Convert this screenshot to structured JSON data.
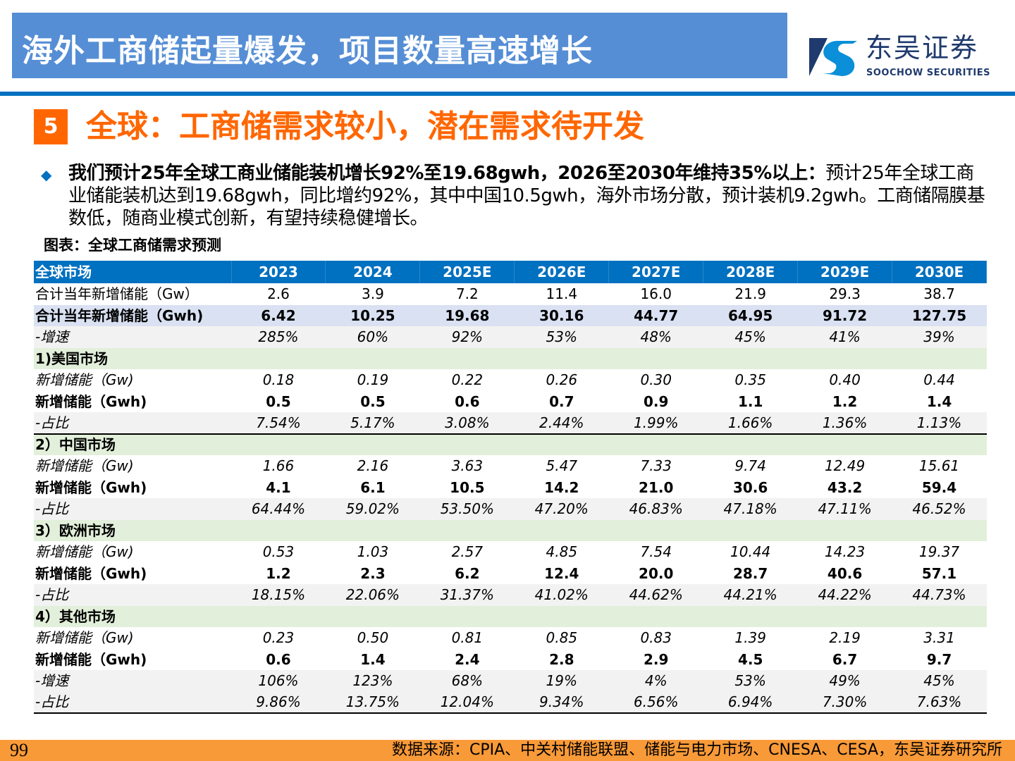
{
  "header": {
    "title": "海外工商储起量爆发，项目数量高速增长"
  },
  "logo": {
    "name_cn": "东吴证券",
    "name_en": "SOOCHOW SECURITIES"
  },
  "section": {
    "number": "5",
    "title": "全球：工商储需求较小，潜在需求待开发"
  },
  "bullet": {
    "bold": "我们预计25年全球工商业储能装机增长92%至19.68gwh，2026至2030年维持35%以上：",
    "text": "预计25年全球工商业储能装机达到19.68gwh，同比增约92%，其中中国10.5gwh，海外市场分散，预计装机9.2gwh。工商储隔膜基数低，随商业模式创新，有望持续稳健增长。"
  },
  "caption": "图表：全球工商储需求预测",
  "table": {
    "headers": [
      "全球市场",
      "2023",
      "2024",
      "2025E",
      "2026E",
      "2027E",
      "2028E",
      "2029E",
      "2030E"
    ],
    "rows": [
      {
        "style": "white",
        "cells": [
          "合计当年新增储能（Gw）",
          "2.6",
          "3.9",
          "7.2",
          "11.4",
          "16.0",
          "21.9",
          "29.3",
          "38.7"
        ]
      },
      {
        "style": "blue",
        "cells": [
          "合计当年新增储能（Gwh)",
          "6.42",
          "10.25",
          "19.68",
          "30.16",
          "44.77",
          "64.95",
          "91.72",
          "127.75"
        ]
      },
      {
        "style": "gray",
        "cells": [
          "-增速",
          "285%",
          "60%",
          "92%",
          "53%",
          "48%",
          "45%",
          "41%",
          "39%"
        ]
      },
      {
        "style": "sec",
        "cells": [
          "1)美国市场",
          "",
          "",
          "",
          "",
          "",
          "",
          "",
          ""
        ]
      },
      {
        "style": "it",
        "cells": [
          "新增储能（Gw)",
          "0.18",
          "0.19",
          "0.22",
          "0.26",
          "0.30",
          "0.35",
          "0.40",
          "0.44"
        ]
      },
      {
        "style": "bold",
        "cells": [
          "新增储能（Gwh)",
          "0.5",
          "0.5",
          "0.6",
          "0.7",
          "0.9",
          "1.1",
          "1.2",
          "1.4"
        ]
      },
      {
        "style": "gray line",
        "cells": [
          "-占比",
          "7.54%",
          "5.17%",
          "3.08%",
          "2.44%",
          "1.99%",
          "1.66%",
          "1.36%",
          "1.13%"
        ]
      },
      {
        "style": "sec",
        "cells": [
          "2）中国市场",
          "",
          "",
          "",
          "",
          "",
          "",
          "",
          ""
        ]
      },
      {
        "style": "it",
        "cells": [
          "新增储能（Gw)",
          "1.66",
          "2.16",
          "3.63",
          "5.47",
          "7.33",
          "9.74",
          "12.49",
          "15.61"
        ]
      },
      {
        "style": "bold",
        "cells": [
          "新增储能（Gwh)",
          "4.1",
          "6.1",
          "10.5",
          "14.2",
          "21.0",
          "30.6",
          "43.2",
          "59.4"
        ]
      },
      {
        "style": "gray",
        "cells": [
          "-占比",
          "64.44%",
          "59.02%",
          "53.50%",
          "47.20%",
          "46.83%",
          "47.18%",
          "47.11%",
          "46.52%"
        ]
      },
      {
        "style": "sec",
        "cells": [
          "3）欧洲市场",
          "",
          "",
          "",
          "",
          "",
          "",
          "",
          ""
        ]
      },
      {
        "style": "it",
        "cells": [
          "新增储能（Gw)",
          "0.53",
          "1.03",
          "2.57",
          "4.85",
          "7.54",
          "10.44",
          "14.23",
          "19.37"
        ]
      },
      {
        "style": "bold",
        "cells": [
          "新增储能（Gwh)",
          "1.2",
          "2.3",
          "6.2",
          "12.4",
          "20.0",
          "28.7",
          "40.6",
          "57.1"
        ]
      },
      {
        "style": "gray",
        "cells": [
          "-占比",
          "18.15%",
          "22.06%",
          "31.37%",
          "41.02%",
          "44.62%",
          "44.21%",
          "44.22%",
          "44.73%"
        ]
      },
      {
        "style": "sec",
        "cells": [
          "4）其他市场",
          "",
          "",
          "",
          "",
          "",
          "",
          "",
          ""
        ]
      },
      {
        "style": "it",
        "cells": [
          "新增储能（Gw)",
          "0.23",
          "0.50",
          "0.81",
          "0.85",
          "0.83",
          "1.39",
          "2.19",
          "3.31"
        ]
      },
      {
        "style": "bold",
        "cells": [
          "新增储能（Gwh)",
          "0.6",
          "1.4",
          "2.4",
          "2.8",
          "2.9",
          "4.5",
          "6.7",
          "9.7"
        ]
      },
      {
        "style": "gray",
        "cells": [
          "-增速",
          "106%",
          "123%",
          "68%",
          "19%",
          "4%",
          "53%",
          "49%",
          "45%"
        ]
      },
      {
        "style": "gray line",
        "cells": [
          "-占比",
          "9.86%",
          "13.75%",
          "12.04%",
          "9.34%",
          "6.56%",
          "6.94%",
          "7.30%",
          "7.63%"
        ]
      }
    ]
  },
  "footer": {
    "page": "99",
    "source": "数据来源：CPIA、中关村储能联盟、储能与电力市场、CNESA、CESA，东吴证券研究所"
  },
  "colors": {
    "header_bg": "#558ed5",
    "accent": "#ff6600",
    "table_header": "#0070c0",
    "footer_bg": "#f99a38"
  }
}
